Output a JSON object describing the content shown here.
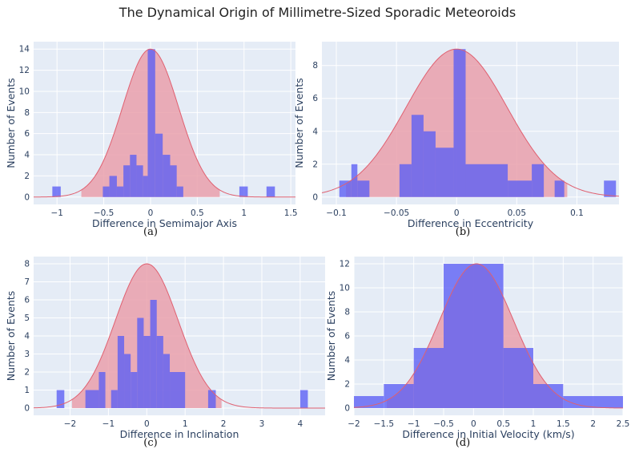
{
  "title": "The Dynamical Origin of Millimetre-Sized Sporadic Meteoroids",
  "colors": {
    "background": "#e5ecf6",
    "grid": "#ffffff",
    "gaussian": "#e06070",
    "gaussian_fill": "#eaa0ab",
    "histogram": "#5b5df5"
  },
  "chart_data": [
    {
      "type": "bar",
      "caption": "(a)",
      "xlabel": "Difference in Semimajor Axis",
      "ylabel": "Number of Events",
      "xlim": [
        -1.25,
        1.55
      ],
      "ylim": [
        -0.7,
        14.7
      ],
      "xticks": [
        -1,
        -0.5,
        0,
        0.5,
        1,
        1.5
      ],
      "xticklabels": [
        "−1",
        "−0.5",
        "0",
        "0.5",
        "1",
        "1.5"
      ],
      "yticks": [
        0,
        2,
        4,
        6,
        8,
        10,
        12,
        14
      ],
      "bins": [
        [
          -1.05,
          -0.96,
          1
        ],
        [
          -0.51,
          -0.44,
          1
        ],
        [
          -0.44,
          -0.36,
          2
        ],
        [
          -0.36,
          -0.29,
          1
        ],
        [
          -0.29,
          -0.22,
          3
        ],
        [
          -0.22,
          -0.15,
          4
        ],
        [
          -0.15,
          -0.08,
          3
        ],
        [
          -0.08,
          -0.03,
          2
        ],
        [
          -0.03,
          0.05,
          14
        ],
        [
          0.05,
          0.13,
          6
        ],
        [
          0.13,
          0.21,
          4
        ],
        [
          0.21,
          0.28,
          3
        ],
        [
          0.28,
          0.35,
          1
        ],
        [
          0.95,
          1.04,
          1
        ],
        [
          1.24,
          1.33,
          1
        ]
      ],
      "gaussian": {
        "mean": 0,
        "sigma": 0.3,
        "peak": 14,
        "fill_range": [
          -0.74,
          0.74
        ]
      }
    },
    {
      "type": "bar",
      "caption": "(b)",
      "xlabel": "Difference in Eccentricity",
      "ylabel": "Number of Events",
      "xlim": [
        -0.112,
        0.135
      ],
      "ylim": [
        -0.45,
        9.45
      ],
      "xticks": [
        -0.1,
        -0.05,
        0,
        0.05,
        0.1
      ],
      "xticklabels": [
        "−0.1",
        "−0.05",
        "0",
        "0.05",
        "0.1"
      ],
      "yticks": [
        0,
        2,
        4,
        6,
        8
      ],
      "bins": [
        [
          -0.0975,
          -0.0875,
          1
        ],
        [
          -0.0875,
          -0.0825,
          2
        ],
        [
          -0.0825,
          -0.0725,
          1
        ],
        [
          -0.0475,
          -0.0375,
          2
        ],
        [
          -0.0375,
          -0.0275,
          5
        ],
        [
          -0.0275,
          -0.0175,
          4
        ],
        [
          -0.0175,
          -0.0025,
          3
        ],
        [
          -0.0025,
          0.0075,
          9
        ],
        [
          0.0075,
          0.0425,
          2
        ],
        [
          0.0425,
          0.0625,
          1
        ],
        [
          0.0625,
          0.0725,
          2
        ],
        [
          0.0815,
          0.0895,
          1
        ],
        [
          0.1225,
          0.1325,
          1
        ]
      ],
      "gaussian": {
        "mean": 0,
        "sigma": 0.042,
        "peak": 9,
        "fill_range": [
          -0.092,
          0.092
        ]
      }
    },
    {
      "type": "bar",
      "caption": "(c)",
      "xlabel": "Difference in Inclination",
      "ylabel": "Number of Events",
      "xlim": [
        -2.95,
        4.65
      ],
      "ylim": [
        -0.4,
        8.4
      ],
      "xticks": [
        -2,
        -1,
        0,
        1,
        2,
        3,
        4
      ],
      "xticklabels": [
        "−2",
        "−1",
        "0",
        "1",
        "2",
        "3",
        "4"
      ],
      "yticks": [
        0,
        1,
        2,
        3,
        4,
        5,
        6,
        7,
        8
      ],
      "bins": [
        [
          -2.35,
          -2.15,
          1
        ],
        [
          -1.6,
          -1.25,
          1
        ],
        [
          -1.25,
          -1.08,
          2
        ],
        [
          -0.93,
          -0.76,
          1
        ],
        [
          -0.76,
          -0.59,
          4
        ],
        [
          -0.59,
          -0.42,
          3
        ],
        [
          -0.42,
          -0.25,
          2
        ],
        [
          -0.25,
          -0.08,
          5
        ],
        [
          -0.08,
          0.09,
          4
        ],
        [
          0.09,
          0.26,
          6
        ],
        [
          0.26,
          0.43,
          4
        ],
        [
          0.43,
          0.6,
          3
        ],
        [
          0.6,
          1.0,
          2
        ],
        [
          1.6,
          1.8,
          1
        ],
        [
          4.0,
          4.2,
          1
        ]
      ],
      "gaussian": {
        "mean": 0,
        "sigma": 0.82,
        "peak": 8,
        "fill_range": [
          -1.95,
          1.95
        ]
      }
    },
    {
      "type": "bar",
      "caption": "(d)",
      "xlabel": "Difference in Initial Velocity (km/s)",
      "ylabel": "Number of Events",
      "xlim": [
        -2,
        2.5
      ],
      "ylim": [
        -0.6,
        12.6
      ],
      "xticks": [
        -2,
        -1.5,
        -1,
        -0.5,
        0,
        0.5,
        1,
        1.5,
        2,
        2.5
      ],
      "xticklabels": [
        "−2",
        "−1.5",
        "−1",
        "−0.5",
        "0",
        "0.5",
        "1",
        "1.5",
        "2",
        "2.5"
      ],
      "yticks": [
        0,
        2,
        4,
        6,
        8,
        10,
        12
      ],
      "bins": [
        [
          -2,
          -1.5,
          1
        ],
        [
          -1.5,
          -1,
          2
        ],
        [
          -1,
          -0.5,
          5
        ],
        [
          -0.5,
          0.5,
          12
        ],
        [
          0.5,
          1,
          5
        ],
        [
          1,
          1.5,
          2
        ],
        [
          1.5,
          2.5,
          1
        ]
      ],
      "gaussian": {
        "mean": 0.05,
        "sigma": 0.62,
        "peak": 12,
        "fill_range": [
          -1.45,
          1.5
        ]
      }
    }
  ]
}
